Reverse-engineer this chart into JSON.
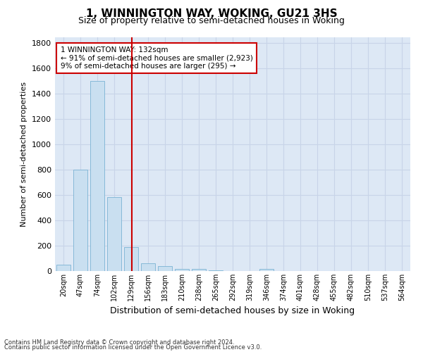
{
  "title": "1, WINNINGTON WAY, WOKING, GU21 3HS",
  "subtitle": "Size of property relative to semi-detached houses in Woking",
  "xlabel": "Distribution of semi-detached houses by size in Woking",
  "ylabel": "Number of semi-detached properties",
  "footnote1": "Contains HM Land Registry data © Crown copyright and database right 2024.",
  "footnote2": "Contains public sector information licensed under the Open Government Licence v3.0.",
  "annotation_title": "1 WINNINGTON WAY: 132sqm",
  "annotation_line1": "← 91% of semi-detached houses are smaller (2,923)",
  "annotation_line2": "9% of semi-detached houses are larger (295) →",
  "bar_color": "#c9dff0",
  "bar_edge_color": "#7ab3d3",
  "vline_color": "#cc0000",
  "annotation_box_color": "#ffffff",
  "annotation_box_edge": "#cc0000",
  "grid_color": "#c8d4e8",
  "background_color": "#dde8f5",
  "title_color": "#000000",
  "categories": [
    "20sqm",
    "47sqm",
    "74sqm",
    "102sqm",
    "129sqm",
    "156sqm",
    "183sqm",
    "210sqm",
    "238sqm",
    "265sqm",
    "292sqm",
    "319sqm",
    "346sqm",
    "374sqm",
    "401sqm",
    "428sqm",
    "455sqm",
    "482sqm",
    "510sqm",
    "537sqm",
    "564sqm"
  ],
  "values": [
    48,
    800,
    1500,
    585,
    190,
    60,
    38,
    18,
    18,
    5,
    0,
    0,
    18,
    0,
    0,
    0,
    0,
    0,
    0,
    0,
    0
  ],
  "ylim": [
    0,
    1850
  ],
  "yticks": [
    0,
    200,
    400,
    600,
    800,
    1000,
    1200,
    1400,
    1600,
    1800
  ],
  "vline_x_index": 4.05
}
